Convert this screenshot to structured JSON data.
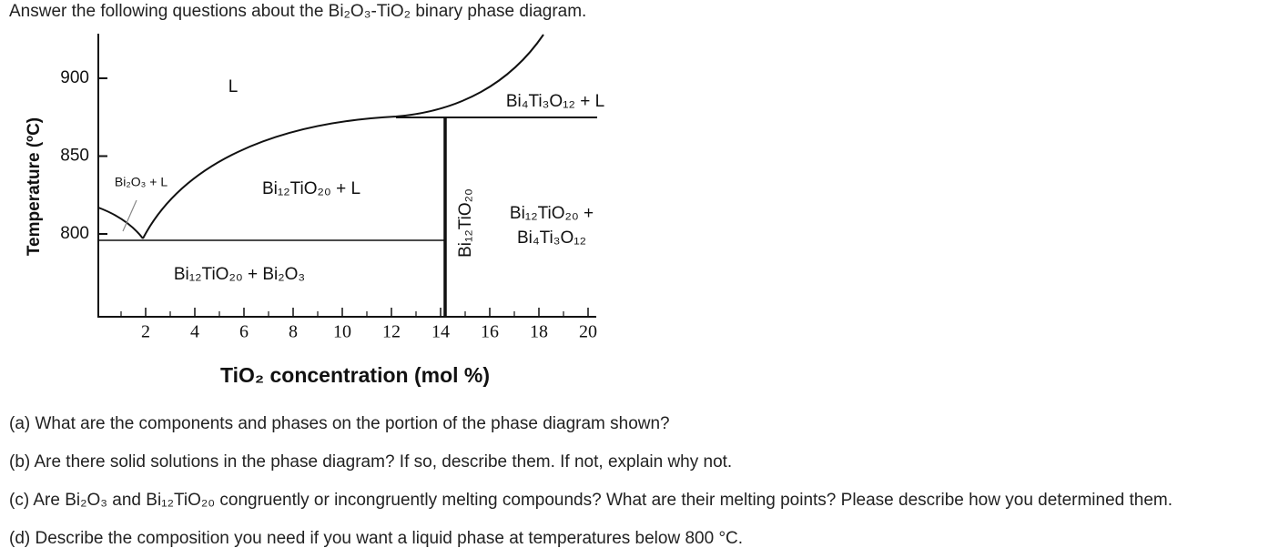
{
  "header": {
    "title": "Answer the following questions about the Bi₂O₃-TiO₂ binary phase diagram."
  },
  "figure": {
    "y_axis": {
      "label": "Temperature (ºC)",
      "ticks": [
        800,
        850,
        900
      ]
    },
    "x_axis": {
      "label": "TiO₂ concentration (mol %)",
      "ticks": [
        2,
        4,
        6,
        8,
        10,
        12,
        14,
        16,
        18,
        20
      ]
    },
    "regions": [
      "L",
      "Bi₂O₃ + L",
      "Bi₁₂TiO₂₀ + L",
      "Bi₄Ti₃O₁₂ + L",
      "Bi₁₂TiO₂₀ +",
      "Bi₄Ti₃O₁₂",
      "Bi₁₂TiO₂₀ + Bi₂O₃"
    ],
    "compound": "Bi₁₂TiO₂₀"
  },
  "questions": [
    "(a) What are the components and phases on the portion of the phase diagram shown?",
    "(b) Are there solid solutions in the phase diagram? If so, describe them. If not, explain why not.",
    "(c) Are Bi₂O₃ and Bi₁₂TiO₂₀ congruently or incongruently melting compounds? What are their melting points? Please describe how you determined them.",
    "(d) Describe the composition you need if you want a liquid phase at temperatures below 800 °C."
  ]
}
